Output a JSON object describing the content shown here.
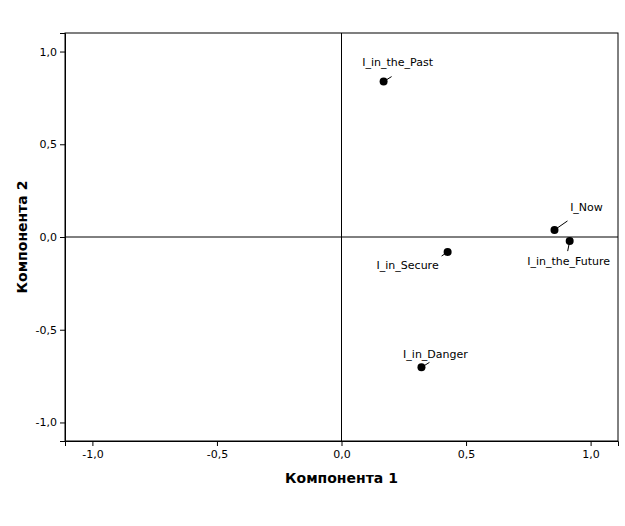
{
  "chart_data": {
    "type": "scatter",
    "xlabel": "Компонента 1",
    "ylabel": "Компонента 2",
    "labels": [
      "I_in_the_Past",
      "I_Now",
      "I_in_the_Future",
      "I_in_Secure",
      "I_in_Danger"
    ],
    "x": [
      0.169,
      0.855,
      0.916,
      0.426,
      0.321
    ],
    "y": [
      0.838,
      0.038,
      -0.022,
      -0.081,
      -0.703
    ],
    "xlim": [
      -1.11,
      1.11
    ],
    "ylim": [
      -1.1,
      1.1
    ],
    "xticks": [
      {
        "value": -1.0,
        "label": "-1,0"
      },
      {
        "value": -0.5,
        "label": "-0,5"
      },
      {
        "value": 0.0,
        "label": "0,0"
      },
      {
        "value": 0.5,
        "label": "0,5"
      },
      {
        "value": 1.0,
        "label": "1,0"
      }
    ],
    "yticks": [
      {
        "value": -1.0,
        "label": "-1,0"
      },
      {
        "value": -0.5,
        "label": "-0,5"
      },
      {
        "value": 0.0,
        "label": "0,0"
      },
      {
        "value": 0.5,
        "label": "0,5"
      },
      {
        "value": 1.0,
        "label": "1,0"
      }
    ],
    "color": "#000000",
    "marker": "circle",
    "grid": false
  }
}
